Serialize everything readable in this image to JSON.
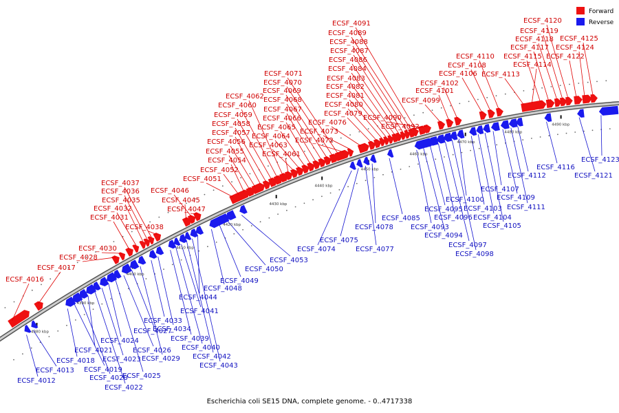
{
  "legend": {
    "forward": "Forward",
    "reverse": "Reverse",
    "forward_color": "#ee1111",
    "reverse_color": "#1a1aee"
  },
  "caption": "Escherichia coli SE15 DNA, complete genome. - 0..4717338",
  "ticks": [
    "4380 kbp",
    "4390 kbp",
    "4400 kbp",
    "4410 kbp",
    "4420 kbp",
    "4430 kbp",
    "4440 kbp",
    "4450 kbp",
    "4460 kbp",
    "4470 kbp",
    "4480 kbp",
    "4490 kbp"
  ],
  "forward_genes": [
    "ECSF_4016",
    "ECSF_4017",
    "ECSF_4028",
    "ECSF_4030",
    "ECSF_4031",
    "ECSF_4032",
    "ECSF_4035",
    "ECSF_4036",
    "ECSF_4037",
    "ECSF_4038",
    "ECSF_4045",
    "ECSF_4046",
    "ECSF_4047",
    "ECSF_4051",
    "ECSF_4052",
    "ECSF_4054",
    "ECSF_4055",
    "ECSF_4056",
    "ECSF_4057",
    "ECSF_4058",
    "ECSF_4059",
    "ECSF_4060",
    "ECSF_4062",
    "ECSF_4061",
    "ECSF_4063",
    "ECSF_4064",
    "ECSF_4065",
    "ECSF_4066",
    "ECSF_4067",
    "ECSF_4068",
    "ECSF_4069",
    "ECSF_4070",
    "ECSF_4071",
    "ECSF_4072",
    "ECSF_4073",
    "ECSF_4076",
    "ECSF_4079",
    "ECSF_4080",
    "ECSF_4081",
    "ECSF_4082",
    "ECSF_4083",
    "ECSF_4084",
    "ECSF_4086",
    "ECSF_4087",
    "ECSF_4088",
    "ECSF_4089",
    "ECSF_4091",
    "ECSF_4090",
    "ECSF_4092",
    "ECSF_4099",
    "ECSF_4101",
    "ECSF_4102",
    "ECSF_4106",
    "ECSF_4108",
    "ECSF_4110",
    "ECSF_4113",
    "ECSF_4114",
    "ECSF_4115",
    "ECSF_4117",
    "ECSF_4118",
    "ECSF_4119",
    "ECSF_4120",
    "ECSF_4122",
    "ECSF_4124",
    "ECSF_4125"
  ],
  "reverse_genes": [
    "ECSF_4012",
    "ECSF_4013",
    "ECSF_4018",
    "ECSF_4019",
    "ECSF_4020",
    "ECSF_4021",
    "ECSF_4022",
    "ECSF_4023",
    "ECSF_4024",
    "ECSF_4025",
    "ECSF_4026",
    "ECSF_4027",
    "ECSF_4029",
    "ECSF_4033",
    "ECSF_4034",
    "ECSF_4039",
    "ECSF_4040",
    "ECSF_4041",
    "ECSF_4042",
    "ECSF_4043",
    "ECSF_4044",
    "ECSF_4048",
    "ECSF_4049",
    "ECSF_4050",
    "ECSF_4053",
    "ECSF_4074",
    "ECSF_4075",
    "ECSF_4077",
    "ECSF_4078",
    "ECSF_4085",
    "ECSF_4093",
    "ECSF_4094",
    "ECSF_4095",
    "ECSF_4096",
    "ECSF_4097",
    "ECSF_4098",
    "ECSF_4100",
    "ECSF_4103",
    "ECSF_4104",
    "ECSF_4105",
    "ECSF_4107",
    "ECSF_4109",
    "ECSF_4111",
    "ECSF_4112",
    "ECSF_4116",
    "ECSF_4121",
    "ECSF_4123"
  ]
}
